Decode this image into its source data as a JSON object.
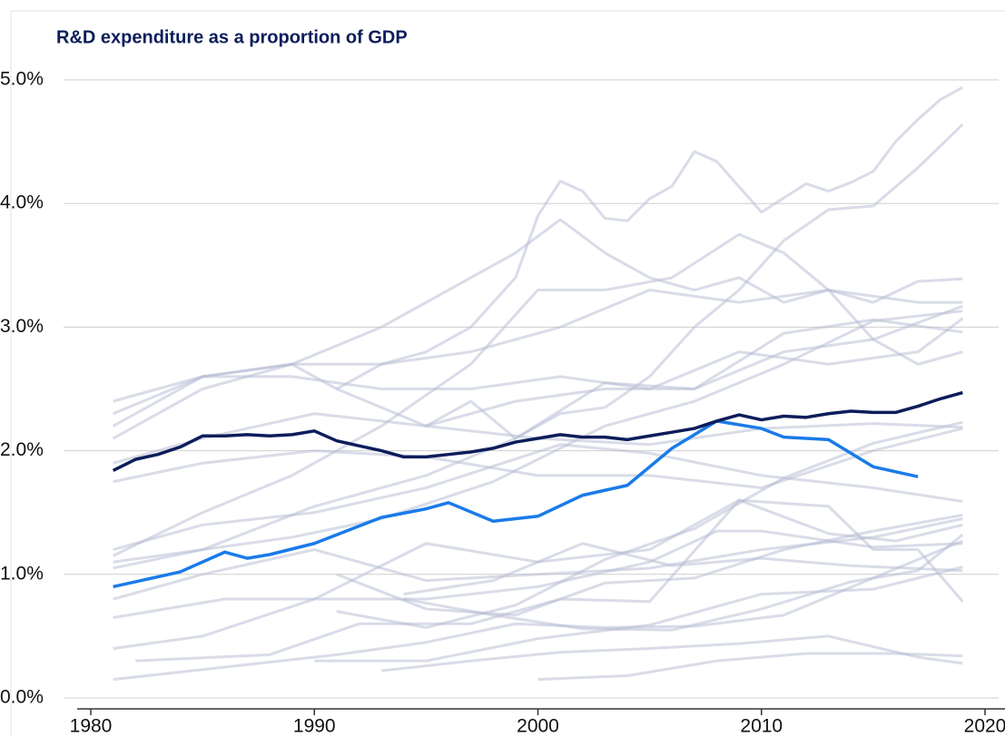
{
  "chart_data": {
    "type": "line",
    "title": "R&D expenditure as a proportion of GDP",
    "xlim": [
      1980,
      2020
    ],
    "xticks": [
      1980,
      1990,
      2000,
      2010,
      2020
    ],
    "ylim": [
      0,
      5
    ],
    "yticks": [
      {
        "value": 0,
        "label": "0.0%"
      },
      {
        "value": 1,
        "label": "1.0%"
      },
      {
        "value": 2,
        "label": "2.0%"
      },
      {
        "value": 3,
        "label": "3.0%"
      },
      {
        "value": 4,
        "label": "4.0%"
      },
      {
        "value": 5,
        "label": "5.0%"
      }
    ],
    "grid": true,
    "series": [
      {
        "color": "#b4b9d2",
        "x": [
          1991,
          1993,
          1995,
          1997,
          1999,
          2000,
          2001,
          2002,
          2003,
          2004,
          2005,
          2006,
          2007,
          2008,
          2010,
          2012,
          2013,
          2014,
          2015,
          2016,
          2017,
          2018,
          2019
        ],
        "values": [
          2.5,
          2.7,
          2.8,
          3.0,
          3.4,
          3.9,
          4.18,
          4.1,
          3.88,
          3.86,
          4.04,
          4.14,
          4.42,
          4.34,
          3.93,
          4.16,
          4.1,
          4.17,
          4.26,
          4.5,
          4.68,
          4.84,
          4.94
        ]
      },
      {
        "color": "#b4b9d2",
        "x": [
          1995,
          1997,
          1999,
          2001,
          2003,
          2005,
          2007,
          2009,
          2011,
          2013,
          2015,
          2017,
          2019
        ],
        "values": [
          2.2,
          2.4,
          2.1,
          2.3,
          2.35,
          2.6,
          3.0,
          3.3,
          3.7,
          3.95,
          3.98,
          4.29,
          4.64
        ]
      },
      {
        "color": "#b4b9d2",
        "x": [
          1981,
          1985,
          1989,
          1993,
          1997,
          1999,
          2001,
          2003,
          2005,
          2007,
          2009,
          2011,
          2013,
          2015,
          2017,
          2019
        ],
        "values": [
          2.2,
          2.6,
          2.7,
          3.0,
          3.4,
          3.6,
          3.87,
          3.6,
          3.4,
          3.3,
          3.4,
          3.2,
          3.3,
          3.2,
          3.37,
          3.39
        ]
      },
      {
        "color": "#b4b9d2",
        "x": [
          1981,
          1985,
          1989,
          1993,
          1997,
          2001,
          2005,
          2009,
          2013,
          2017,
          2019
        ],
        "values": [
          2.1,
          2.5,
          2.7,
          2.7,
          2.8,
          3.0,
          3.3,
          3.2,
          3.3,
          3.2,
          3.2
        ]
      },
      {
        "color": "#b4b9d2",
        "x": [
          1981,
          1985,
          1989,
          1993,
          1997,
          2000,
          2003,
          2006,
          2009,
          2011,
          2013,
          2015,
          2017,
          2019
        ],
        "values": [
          1.15,
          1.5,
          1.8,
          2.2,
          2.7,
          3.3,
          3.3,
          3.4,
          3.75,
          3.6,
          3.3,
          2.9,
          2.7,
          2.8
        ]
      },
      {
        "color": "#b4b9d2",
        "x": [
          1981,
          1985,
          1989,
          1991,
          1995,
          1999,
          2003,
          2007,
          2011,
          2015,
          2019
        ],
        "values": [
          2.4,
          2.6,
          2.7,
          2.5,
          2.2,
          2.4,
          2.5,
          2.5,
          2.8,
          2.9,
          3.17
        ]
      },
      {
        "color": "#b4b9d2",
        "x": [
          1981,
          1985,
          1989,
          1993,
          1997,
          2001,
          2005,
          2009,
          2013,
          2017,
          2019
        ],
        "values": [
          2.3,
          2.6,
          2.6,
          2.5,
          2.5,
          2.6,
          2.5,
          2.8,
          2.7,
          2.8,
          3.07
        ]
      },
      {
        "color": "#b4b9d2",
        "x": [
          1981,
          1985,
          1990,
          1995,
          2000,
          2005,
          2010,
          2015,
          2019
        ],
        "values": [
          1.9,
          2.1,
          2.3,
          2.2,
          2.1,
          2.05,
          2.18,
          2.22,
          2.19
        ]
      },
      {
        "color": "#b4b9d2",
        "x": [
          1981,
          1985,
          1990,
          1995,
          2001,
          2005,
          2010,
          2015,
          2019
        ],
        "values": [
          1.2,
          1.4,
          1.5,
          1.7,
          2.05,
          1.98,
          1.8,
          1.7,
          1.59
        ]
      },
      {
        "color": "#b4b9d2",
        "x": [
          1981,
          1985,
          1990,
          1995,
          2000,
          2005,
          2010,
          2015,
          2019
        ],
        "values": [
          1.75,
          1.9,
          2.0,
          1.95,
          1.8,
          1.8,
          1.7,
          2.0,
          2.18
        ]
      },
      {
        "color": "#b4b9d2",
        "x": [
          1981,
          1985,
          1990,
          1995,
          2000,
          2005,
          2010,
          2015,
          2019
        ],
        "values": [
          0.8,
          1.0,
          1.2,
          0.95,
          1.0,
          1.05,
          1.2,
          1.3,
          1.45
        ]
      },
      {
        "color": "#b4b9d2",
        "x": [
          1981,
          1985,
          1990,
          1995,
          2000,
          2005,
          2008,
          2010,
          2015,
          2019
        ],
        "values": [
          0.4,
          0.5,
          0.8,
          0.8,
          0.9,
          1.1,
          1.35,
          1.35,
          1.22,
          1.25
        ]
      },
      {
        "color": "#b4b9d2",
        "x": [
          1982,
          1988,
          1992,
          1997,
          2001,
          2005,
          2009,
          2013,
          2016,
          2019
        ],
        "values": [
          0.3,
          0.35,
          0.6,
          0.6,
          0.8,
          0.78,
          1.6,
          1.33,
          1.27,
          1.4
        ]
      },
      {
        "color": "#b4b9d2",
        "x": [
          1981,
          1986,
          1990,
          1995,
          2000,
          2005,
          2009,
          2013,
          2015,
          2017,
          2019
        ],
        "values": [
          0.65,
          0.8,
          0.8,
          1.25,
          1.1,
          1.2,
          1.6,
          1.55,
          1.2,
          1.2,
          0.78
        ]
      },
      {
        "color": "#b4b9d2",
        "x": [
          1993,
          1997,
          2001,
          2005,
          2009,
          2013,
          2017,
          2019
        ],
        "values": [
          0.22,
          0.3,
          0.37,
          0.4,
          0.44,
          0.5,
          0.33,
          0.28
        ]
      },
      {
        "color": "#b4b9d2",
        "x": [
          1981,
          1986,
          1991,
          1995,
          1999,
          2003,
          2007,
          2011,
          2015,
          2019
        ],
        "values": [
          0.15,
          0.25,
          0.35,
          0.45,
          0.6,
          0.57,
          0.58,
          0.67,
          0.97,
          1.27
        ]
      },
      {
        "color": "#b4b9d2",
        "x": [
          1994,
          1998,
          2002,
          2006,
          2010,
          2014,
          2017,
          2019
        ],
        "values": [
          0.8,
          0.67,
          0.56,
          0.55,
          0.72,
          0.94,
          1.03,
          1.32
        ]
      },
      {
        "color": "#b4b9d2",
        "x": [
          2000,
          2004,
          2008,
          2012,
          2016,
          2019
        ],
        "values": [
          0.15,
          0.18,
          0.3,
          0.36,
          0.36,
          0.34
        ]
      },
      {
        "color": "#b4b9d2",
        "x": [
          1991,
          1995,
          1999,
          2003,
          2007,
          2011,
          2015,
          2019
        ],
        "values": [
          0.7,
          0.57,
          0.75,
          1.12,
          1.37,
          1.78,
          2.06,
          2.23
        ]
      },
      {
        "color": "#b4b9d2",
        "x": [
          1981,
          1985,
          1989,
          1993,
          1998,
          2003,
          2007,
          2011,
          2015,
          2019
        ],
        "values": [
          1.1,
          1.2,
          1.3,
          1.45,
          1.75,
          2.2,
          2.4,
          2.7,
          3.05,
          3.13
        ]
      },
      {
        "color": "#b4b9d2",
        "x": [
          1981,
          1985,
          1990,
          1995,
          1999,
          2003,
          2007,
          2011,
          2015,
          2019
        ],
        "values": [
          1.05,
          1.2,
          1.55,
          1.8,
          2.1,
          2.55,
          2.5,
          2.95,
          3.06,
          2.96
        ]
      },
      {
        "color": "#b4b9d2",
        "x": [
          1994,
          1998,
          2002,
          2006,
          2010,
          2014,
          2019
        ],
        "values": [
          0.84,
          0.95,
          1.25,
          1.07,
          1.13,
          1.07,
          1.03
        ]
      },
      {
        "color": "#b4b9d2",
        "x": [
          1990,
          1995,
          2000,
          2005,
          2010,
          2015,
          2019
        ],
        "values": [
          0.3,
          0.3,
          0.48,
          0.59,
          0.84,
          0.88,
          1.06
        ]
      },
      {
        "color": "#b4b9d2",
        "x": [
          1991,
          1995,
          1999,
          2003,
          2007,
          2011,
          2015,
          2019
        ],
        "values": [
          1.0,
          0.72,
          0.67,
          0.93,
          0.97,
          1.2,
          1.35,
          1.48
        ]
      },
      {
        "color": "#1a7be8",
        "x": [
          1981,
          1984,
          1986,
          1987,
          1988,
          1990,
          1993,
          1995,
          1996,
          1998,
          2000,
          2002,
          2004,
          2006,
          2008,
          2010,
          2011,
          2013,
          2015,
          2017
        ],
        "values": [
          0.9,
          1.02,
          1.18,
          1.13,
          1.16,
          1.25,
          1.46,
          1.53,
          1.58,
          1.43,
          1.47,
          1.64,
          1.72,
          2.02,
          2.24,
          2.18,
          2.11,
          2.09,
          1.87,
          1.79
        ]
      },
      {
        "color": "#0c1d5a",
        "x": [
          1981,
          1982,
          1983,
          1984,
          1985,
          1986,
          1987,
          1988,
          1989,
          1990,
          1991,
          1992,
          1993,
          1994,
          1995,
          1996,
          1997,
          1998,
          1999,
          2000,
          2001,
          2002,
          2003,
          2004,
          2005,
          2006,
          2007,
          2008,
          2009,
          2010,
          2011,
          2012,
          2013,
          2014,
          2015,
          2016,
          2017,
          2018,
          2019
        ],
        "values": [
          1.84,
          1.93,
          1.97,
          2.03,
          2.12,
          2.12,
          2.13,
          2.12,
          2.13,
          2.16,
          2.08,
          2.04,
          2.0,
          1.95,
          1.95,
          1.97,
          1.99,
          2.02,
          2.07,
          2.1,
          2.13,
          2.11,
          2.11,
          2.09,
          2.12,
          2.15,
          2.18,
          2.24,
          2.29,
          2.25,
          2.28,
          2.27,
          2.3,
          2.32,
          2.31,
          2.31,
          2.36,
          2.42,
          2.47
        ]
      }
    ]
  }
}
